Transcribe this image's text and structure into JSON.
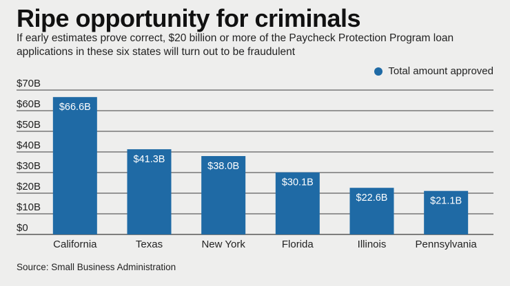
{
  "colors": {
    "bar": "#1f6aa5",
    "grid": "#3a3a3a",
    "background": "#eeeeed"
  },
  "chart_data": {
    "type": "bar",
    "title": "Ripe opportunity for criminals",
    "subtitle": "If early estimates prove correct, $20 billion or more of the Paycheck Protection Program loan applications in these six states will turn out to be fraudulent",
    "categories": [
      "California",
      "Texas",
      "New York",
      "Florida",
      "Illinois",
      "Pennsylvania"
    ],
    "series": [
      {
        "name": "Total amount approved",
        "values": [
          66.6,
          41.3,
          38.0,
          30.1,
          22.6,
          21.1
        ]
      }
    ],
    "data_labels": [
      "$66.6B",
      "$41.3B",
      "$38.0B",
      "$30.1B",
      "$22.6B",
      "$21.1B"
    ],
    "y_ticks": [
      0,
      10,
      20,
      30,
      40,
      50,
      60,
      70
    ],
    "y_tick_labels": [
      "$0",
      "$10B",
      "$20B",
      "$30B",
      "$40B",
      "$50B",
      "$60B",
      "$70B"
    ],
    "ylim": [
      0,
      70
    ],
    "xlabel": "",
    "ylabel": "",
    "grid": true,
    "legend_position": "top-right"
  },
  "source": "Source: Small Business Administration"
}
